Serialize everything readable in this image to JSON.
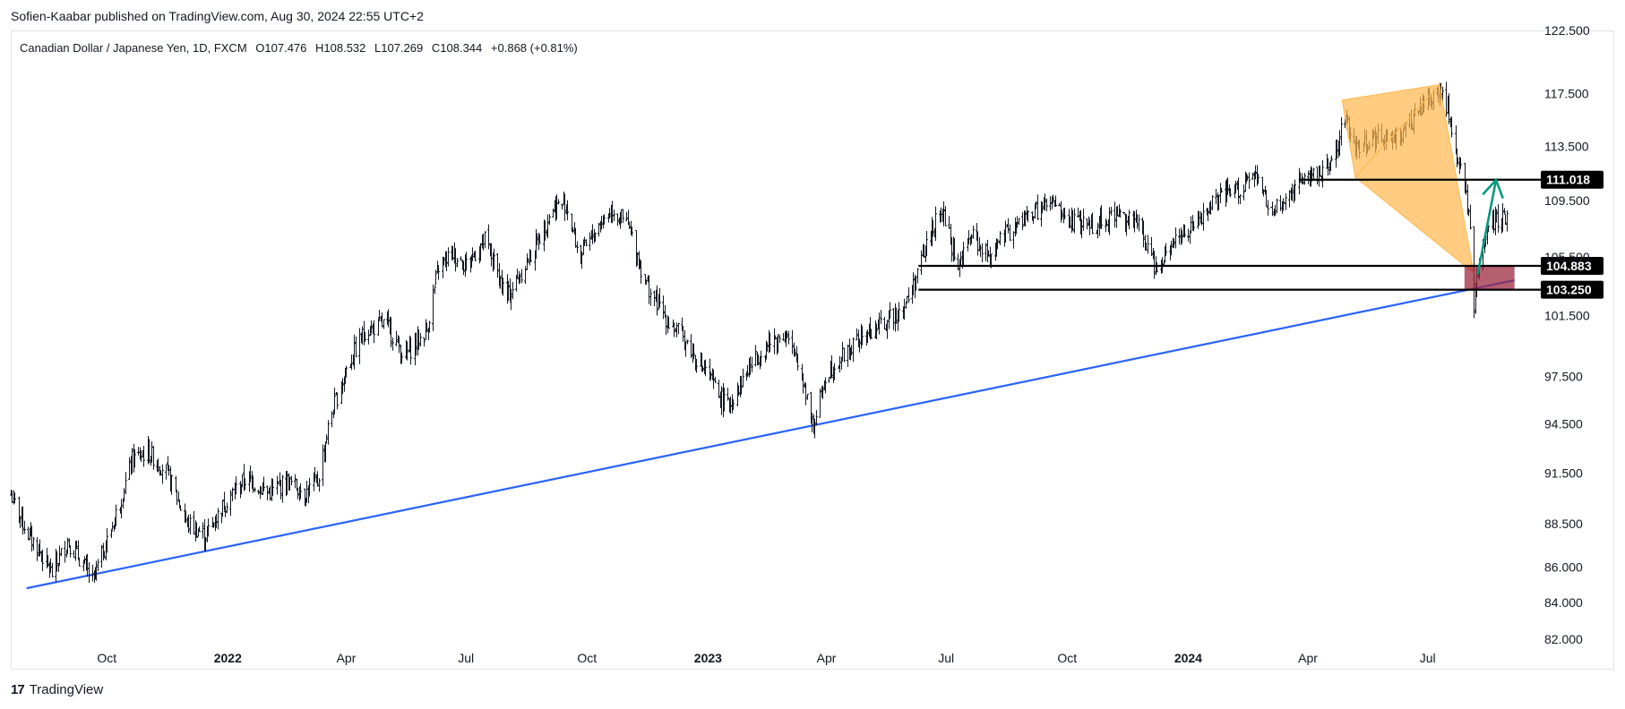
{
  "header": {
    "published": "Sofien-Kaabar published on TradingView.com, Aug 30, 2024 22:55 UTC+2"
  },
  "symbol": {
    "name": "Canadian Dollar / Japanese Yen, 1D, FXCM",
    "open": "O107.476",
    "high": "H108.532",
    "low": "L107.269",
    "close": "C108.344",
    "change": "+0.868 (+0.81%)"
  },
  "footer": {
    "brand": "TradingView"
  },
  "colors": {
    "candles": "#131722",
    "trendline": "#2962ff",
    "arrow": "#089981",
    "pattern": "#ffb74d",
    "zone": "#9c2a3f",
    "level": "#000000"
  },
  "chart_data": {
    "type": "ohlc",
    "title": "Canadian Dollar / Japanese Yen, 1D, FXCM",
    "x_range": [
      "2021-07-20",
      "2024-09-25"
    ],
    "y_range": [
      82.0,
      122.5
    ],
    "y_scale": "log",
    "y_ticks": [
      "122.500",
      "117.500",
      "113.500",
      "109.500",
      "105.500",
      "101.500",
      "97.500",
      "94.500",
      "91.500",
      "88.500",
      "86.000",
      "84.000",
      "82.000"
    ],
    "x_ticks": [
      {
        "label": "Oct",
        "date": "2021-10-01",
        "year": false
      },
      {
        "label": "2022",
        "date": "2022-01-01",
        "year": true
      },
      {
        "label": "Apr",
        "date": "2022-04-01",
        "year": false
      },
      {
        "label": "Jul",
        "date": "2022-07-01",
        "year": false
      },
      {
        "label": "Oct",
        "date": "2022-10-01",
        "year": false
      },
      {
        "label": "2023",
        "date": "2023-01-01",
        "year": true
      },
      {
        "label": "Apr",
        "date": "2023-04-01",
        "year": false
      },
      {
        "label": "Jul",
        "date": "2023-07-01",
        "year": false
      },
      {
        "label": "Oct",
        "date": "2023-10-01",
        "year": false
      },
      {
        "label": "2024",
        "date": "2024-01-01",
        "year": true
      },
      {
        "label": "Apr",
        "date": "2024-04-01",
        "year": false
      },
      {
        "label": "Jul",
        "date": "2024-07-01",
        "year": false
      }
    ],
    "price_path": [
      [
        "2021-07-20",
        90.2
      ],
      [
        "2021-08-01",
        88.0
      ],
      [
        "2021-08-10",
        87.0
      ],
      [
        "2021-08-20",
        85.6
      ],
      [
        "2021-09-01",
        87.5
      ],
      [
        "2021-09-10",
        86.5
      ],
      [
        "2021-09-20",
        85.2
      ],
      [
        "2021-10-01",
        87.5
      ],
      [
        "2021-10-10",
        89.5
      ],
      [
        "2021-10-20",
        92.3
      ],
      [
        "2021-11-01",
        92.8
      ],
      [
        "2021-11-15",
        91.6
      ],
      [
        "2021-12-01",
        88.5
      ],
      [
        "2021-12-15",
        87.8
      ],
      [
        "2022-01-01",
        90.0
      ],
      [
        "2022-01-15",
        91.2
      ],
      [
        "2022-02-01",
        90.3
      ],
      [
        "2022-02-15",
        91.0
      ],
      [
        "2022-03-01",
        90.3
      ],
      [
        "2022-03-10",
        91.0
      ],
      [
        "2022-03-20",
        95.0
      ],
      [
        "2022-04-01",
        98.0
      ],
      [
        "2022-04-15",
        100.5
      ],
      [
        "2022-05-01",
        101.0
      ],
      [
        "2022-05-15",
        98.8
      ],
      [
        "2022-06-01",
        100.5
      ],
      [
        "2022-06-10",
        104.8
      ],
      [
        "2022-06-20",
        105.8
      ],
      [
        "2022-07-01",
        105.0
      ],
      [
        "2022-07-15",
        106.7
      ],
      [
        "2022-08-01",
        102.7
      ],
      [
        "2022-08-20",
        105.8
      ],
      [
        "2022-09-05",
        109.0
      ],
      [
        "2022-09-15",
        109.3
      ],
      [
        "2022-09-25",
        105.4
      ],
      [
        "2022-10-10",
        107.8
      ],
      [
        "2022-10-20",
        108.9
      ],
      [
        "2022-11-01",
        107.7
      ],
      [
        "2022-11-15",
        103.6
      ],
      [
        "2022-12-01",
        101.2
      ],
      [
        "2022-12-15",
        99.8
      ],
      [
        "2023-01-01",
        97.5
      ],
      [
        "2023-01-15",
        95.5
      ],
      [
        "2023-02-01",
        98.1
      ],
      [
        "2023-02-15",
        99.6
      ],
      [
        "2023-03-01",
        100.3
      ],
      [
        "2023-03-15",
        97.0
      ],
      [
        "2023-03-22",
        94.3
      ],
      [
        "2023-04-01",
        97.8
      ],
      [
        "2023-04-15",
        99.0
      ],
      [
        "2023-05-01",
        100.3
      ],
      [
        "2023-05-15",
        101.0
      ],
      [
        "2023-06-01",
        102.4
      ],
      [
        "2023-06-10",
        104.6
      ],
      [
        "2023-06-20",
        107.5
      ],
      [
        "2023-06-28",
        108.6
      ],
      [
        "2023-07-10",
        104.8
      ],
      [
        "2023-07-20",
        107.0
      ],
      [
        "2023-08-01",
        105.6
      ],
      [
        "2023-08-15",
        107.0
      ],
      [
        "2023-09-01",
        108.4
      ],
      [
        "2023-09-20",
        109.3
      ],
      [
        "2023-10-01",
        108.0
      ],
      [
        "2023-10-20",
        107.8
      ],
      [
        "2023-11-10",
        108.6
      ],
      [
        "2023-11-25",
        107.6
      ],
      [
        "2023-12-07",
        104.8
      ],
      [
        "2023-12-20",
        106.8
      ],
      [
        "2024-01-05",
        107.5
      ],
      [
        "2024-01-20",
        109.4
      ],
      [
        "2024-02-05",
        110.2
      ],
      [
        "2024-02-20",
        111.2
      ],
      [
        "2024-03-05",
        108.6
      ],
      [
        "2024-03-15",
        109.6
      ],
      [
        "2024-03-28",
        111.3
      ],
      [
        "2024-04-10",
        111.5
      ],
      [
        "2024-04-22",
        113.0
      ],
      [
        "2024-04-29",
        116.0
      ],
      [
        "2024-05-05",
        113.3
      ],
      [
        "2024-05-20",
        114.2
      ],
      [
        "2024-06-01",
        114.0
      ],
      [
        "2024-06-15",
        114.8
      ],
      [
        "2024-07-01",
        117.0
      ],
      [
        "2024-07-10",
        117.6
      ],
      [
        "2024-07-15",
        116.7
      ],
      [
        "2024-07-25",
        112.0
      ],
      [
        "2024-08-01",
        108.8
      ],
      [
        "2024-08-05",
        102.3
      ],
      [
        "2024-08-12",
        106.6
      ],
      [
        "2024-08-20",
        108.0
      ],
      [
        "2024-08-30",
        108.3
      ]
    ],
    "trendline": [
      [
        "2021-08-01",
        84.8
      ],
      [
        "2024-09-05",
        103.9
      ]
    ],
    "levels": [
      {
        "price": 111.018,
        "label": "111.018",
        "from": "2024-03-25"
      },
      {
        "price": 104.883,
        "label": "104.883",
        "from": "2023-06-10"
      },
      {
        "price": 103.25,
        "label": "103.250",
        "from": "2023-06-10"
      }
    ],
    "pattern_points": [
      [
        "2024-04-27",
        117.0
      ],
      [
        "2024-07-10",
        118.2
      ],
      [
        "2024-08-05",
        104.4
      ],
      [
        "2024-05-07",
        111.2
      ]
    ],
    "zone": {
      "from": "2024-07-29",
      "to": "2024-09-05",
      "top": 104.88,
      "bottom": 103.25
    },
    "arrow": [
      [
        "2024-08-08",
        104.3
      ],
      [
        "2024-08-22",
        111.0
      ]
    ]
  }
}
